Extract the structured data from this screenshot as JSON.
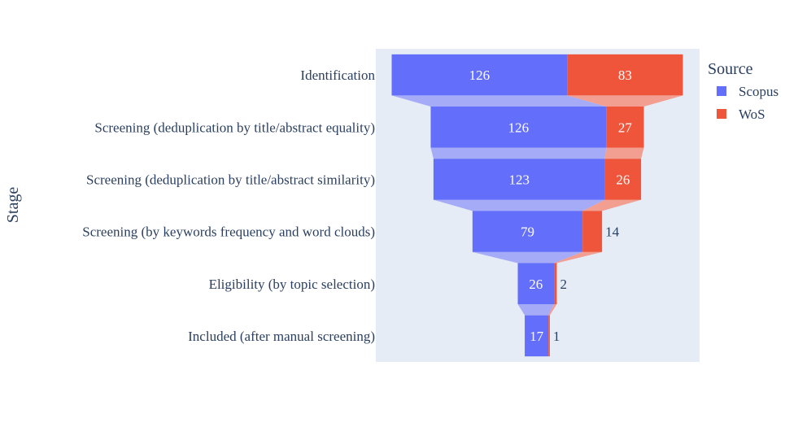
{
  "chart_data": {
    "type": "funnel",
    "ylabel": "Stage",
    "categories": [
      "Identification",
      "Screening (deduplication by title/abstract equality)",
      "Screening (deduplication by title/abstract similarity)",
      "Screening (by keywords frequency and word clouds)",
      "Eligibility (by topic selection)",
      "Included (after manual screening)"
    ],
    "series": [
      {
        "name": "Scopus",
        "values": [
          126,
          126,
          123,
          79,
          26,
          17
        ],
        "color": "#636efa",
        "connector_color": "#a5abf7"
      },
      {
        "name": "WoS",
        "values": [
          83,
          27,
          26,
          14,
          2,
          1
        ],
        "color": "#ef553b",
        "connector_color": "#f29e91"
      }
    ],
    "legend": {
      "title": "Source",
      "position": "right"
    },
    "plot_background": "#e5ecf6"
  }
}
